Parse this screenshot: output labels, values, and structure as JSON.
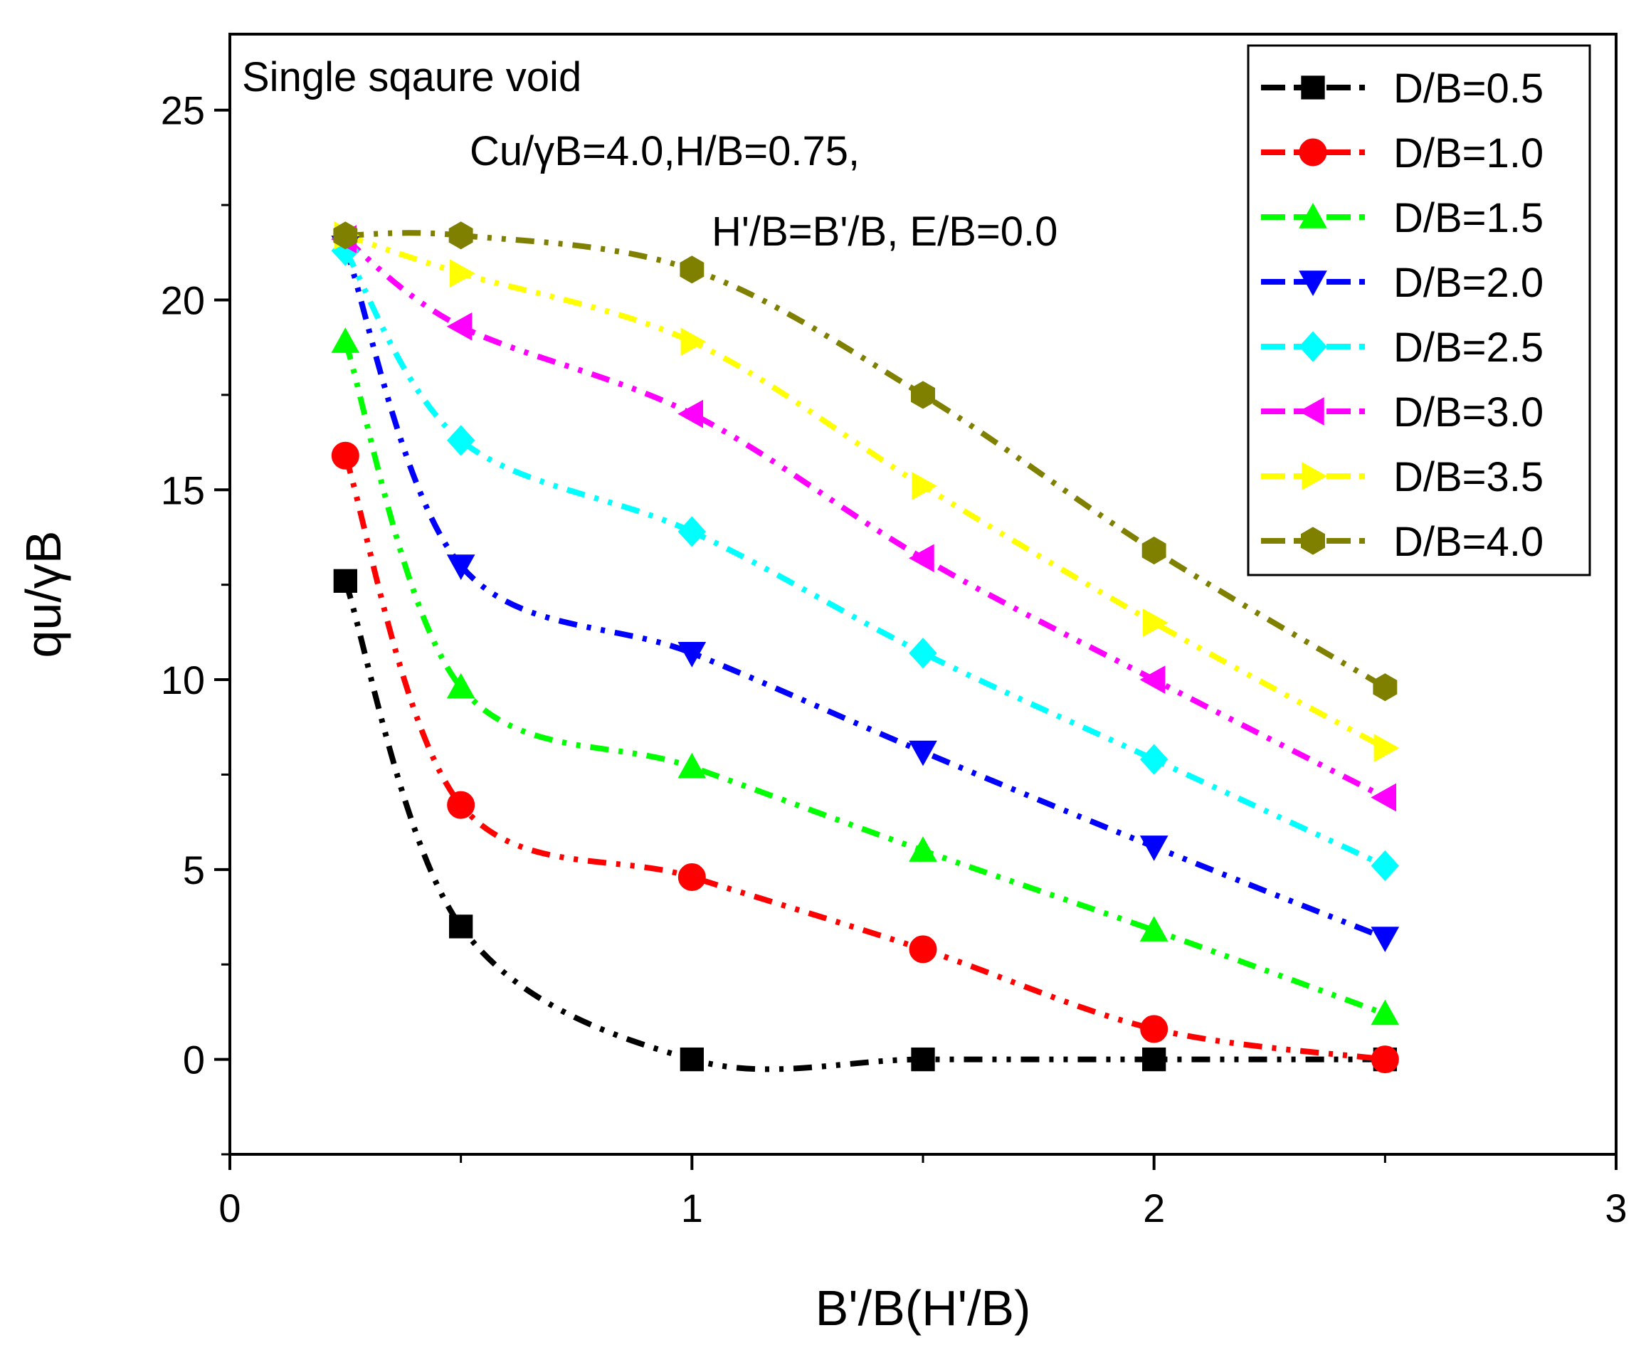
{
  "chart_data": {
    "type": "scatter",
    "title": "",
    "xlabel": "B'/B(H'/B)",
    "ylabel": "qu/γB",
    "xlim": [
      0,
      3
    ],
    "ylim": [
      -2.5,
      27
    ],
    "xticks": [
      "0",
      "1",
      "2",
      "3"
    ],
    "xtick_values": [
      0,
      1,
      2,
      3
    ],
    "yticks": [
      "0",
      "5",
      "10",
      "15",
      "20",
      "25"
    ],
    "ytick_values": [
      0,
      5,
      10,
      15,
      20,
      25
    ],
    "legend_position": "top-right",
    "annotations": {
      "line1": "Single sqaure void",
      "line2": "Cu/γB=4.0,H/B=0.75,",
      "line3": "H'/B=B'/B, E/B=0.0"
    },
    "x": [
      0.25,
      0.5,
      1.0,
      1.5,
      2.0,
      2.5
    ],
    "series": [
      {
        "name": "D/B=0.5",
        "color": "#000000",
        "marker": "square",
        "values": [
          12.6,
          3.5,
          0.0,
          0.0,
          0.0,
          0.0
        ]
      },
      {
        "name": "D/B=1.0",
        "color": "#ff0000",
        "marker": "circle",
        "values": [
          15.9,
          6.7,
          4.8,
          2.9,
          0.8,
          0.0
        ]
      },
      {
        "name": "D/B=1.5",
        "color": "#00ff00",
        "marker": "triangle-up",
        "values": [
          18.9,
          9.8,
          7.7,
          5.5,
          3.4,
          1.2
        ]
      },
      {
        "name": "D/B=2.0",
        "color": "#0000ff",
        "marker": "triangle-down",
        "values": [
          21.4,
          13.0,
          10.7,
          8.1,
          5.6,
          3.2
        ]
      },
      {
        "name": "D/B=2.5",
        "color": "#00ffff",
        "marker": "diamond",
        "values": [
          21.3,
          16.3,
          13.9,
          10.7,
          7.9,
          5.1
        ]
      },
      {
        "name": "D/B=3.0",
        "color": "#ff00ff",
        "marker": "triangle-left",
        "values": [
          21.6,
          19.3,
          17.0,
          13.2,
          10.0,
          6.9
        ]
      },
      {
        "name": "D/B=3.5",
        "color": "#ffff00",
        "marker": "triangle-right",
        "values": [
          21.7,
          20.7,
          18.9,
          15.1,
          11.5,
          8.2
        ]
      },
      {
        "name": "D/B=4.0",
        "color": "#808000",
        "marker": "hexagon",
        "values": [
          21.7,
          21.7,
          20.8,
          17.5,
          13.4,
          9.8
        ]
      }
    ]
  }
}
